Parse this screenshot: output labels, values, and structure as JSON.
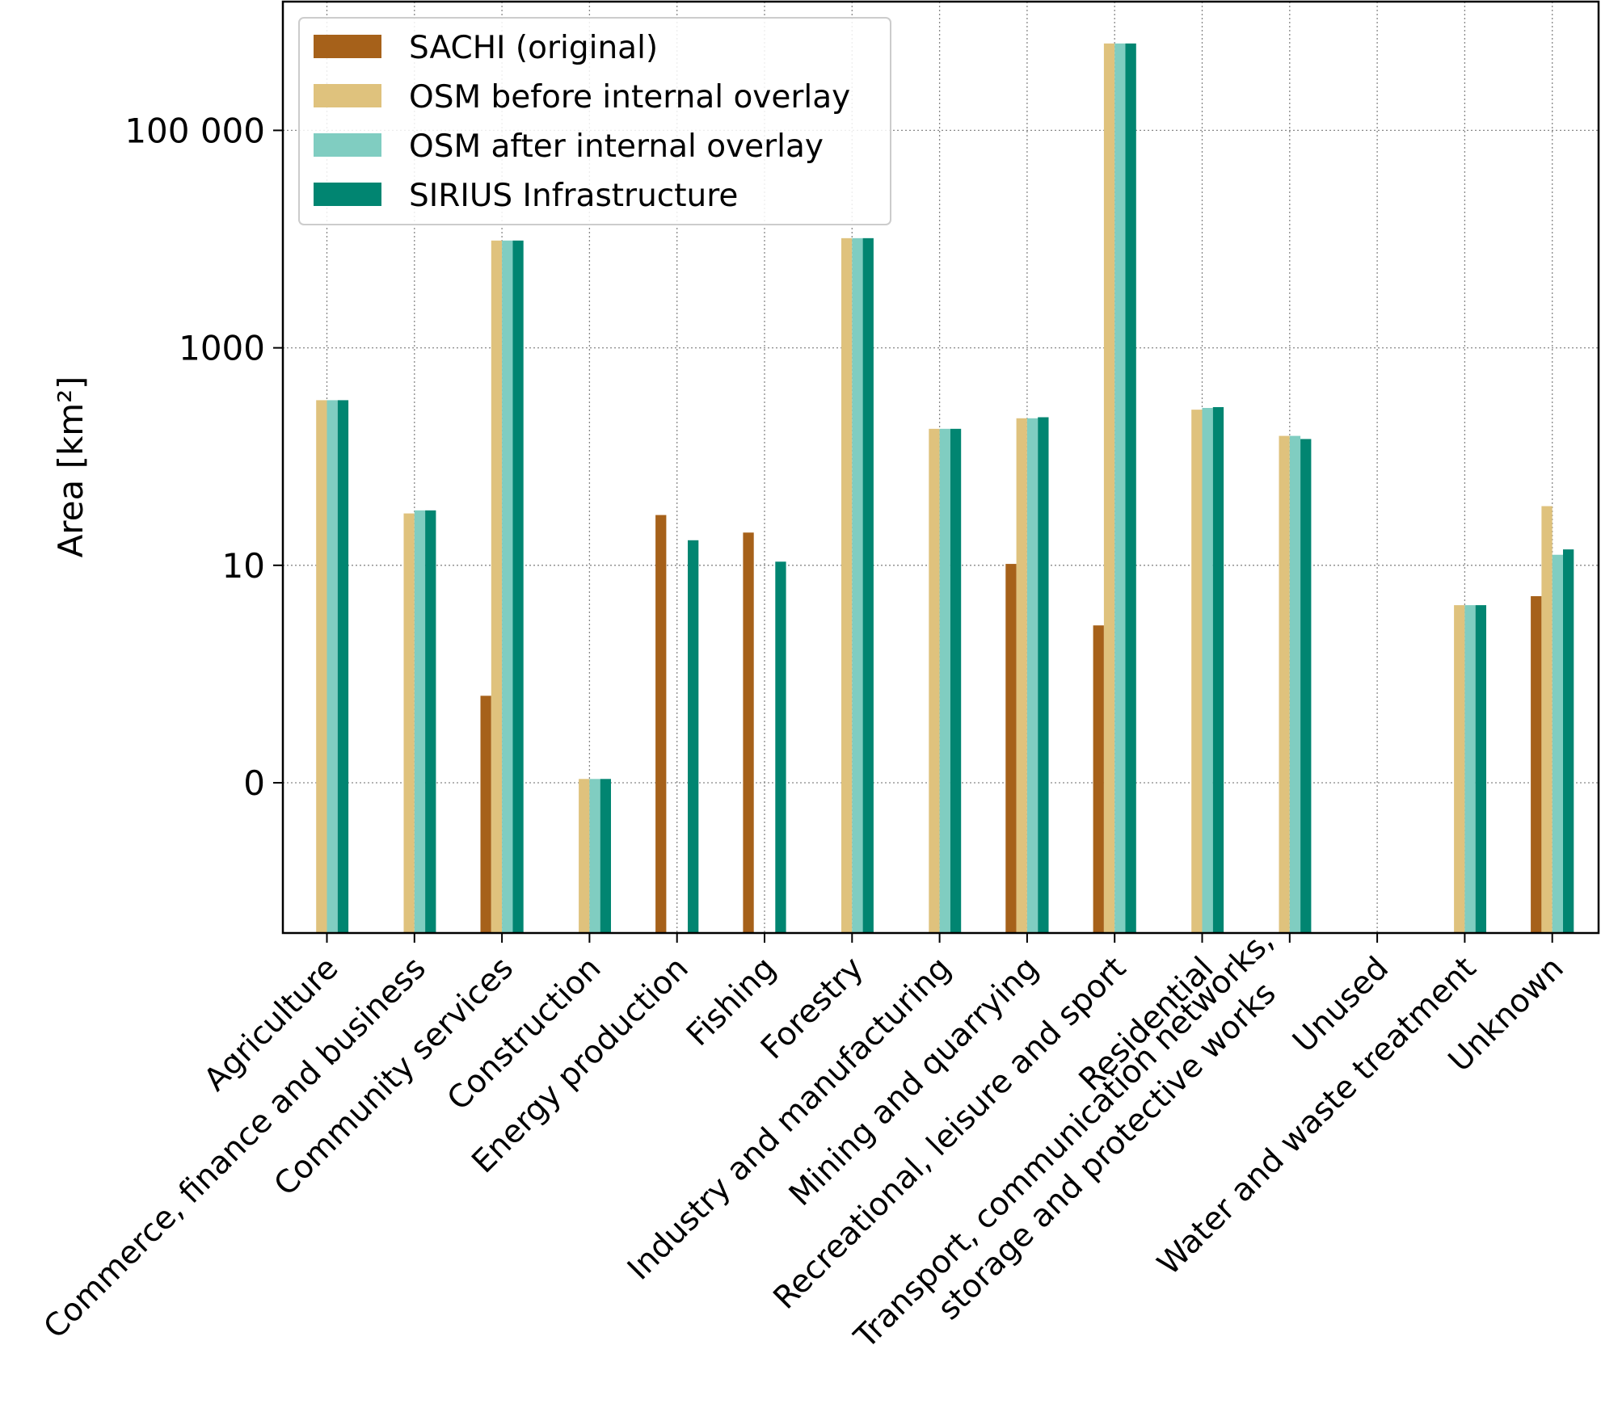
{
  "chart_data": {
    "type": "bar",
    "title": "",
    "xlabel": "",
    "ylabel": "Area [km²]",
    "yscale": "symlog",
    "grid": true,
    "legend_position": "top-left",
    "ytick_labels": [
      "0",
      "10",
      "1000",
      "100 000"
    ],
    "ytick_values": [
      0,
      10,
      1000,
      100000
    ],
    "categories": [
      "Agriculture",
      "Commerce, finance and business",
      "Community services",
      "Construction",
      "Energy production",
      "Fishing",
      "Forestry",
      "Industry and manufacturing",
      "Mining and quarrying",
      "Recreational, leisure and sport",
      "Residential",
      "Transport, communication networks,\nstorage and protective works",
      "Unused",
      "Water and waste treatment",
      "Unknown"
    ],
    "series": [
      {
        "name": "SACHI (original)",
        "color": "#a6611a",
        "values": [
          0,
          0,
          0.8,
          0,
          29,
          20,
          0,
          0,
          10.3,
          2.8,
          0,
          0,
          0,
          0,
          5.2
        ]
      },
      {
        "name": "OSM before internal overlay",
        "color": "#dfc27d",
        "values": [
          330,
          30,
          9700,
          0.035,
          0,
          0,
          10200,
          180,
          225,
          630000,
          270,
          155,
          0,
          4.3,
          35
        ]
      },
      {
        "name": "OSM after internal overlay",
        "color": "#80cdc1",
        "values": [
          330,
          32,
          9700,
          0.035,
          0,
          0,
          10200,
          180,
          225,
          630000,
          280,
          155,
          0,
          4.3,
          12.5
        ]
      },
      {
        "name": "SIRIUS Infrastructure",
        "color": "#018571",
        "values": [
          330,
          32,
          9700,
          0.035,
          17,
          10.8,
          10200,
          180,
          230,
          630000,
          285,
          145,
          0,
          4.3,
          14
        ]
      }
    ]
  }
}
